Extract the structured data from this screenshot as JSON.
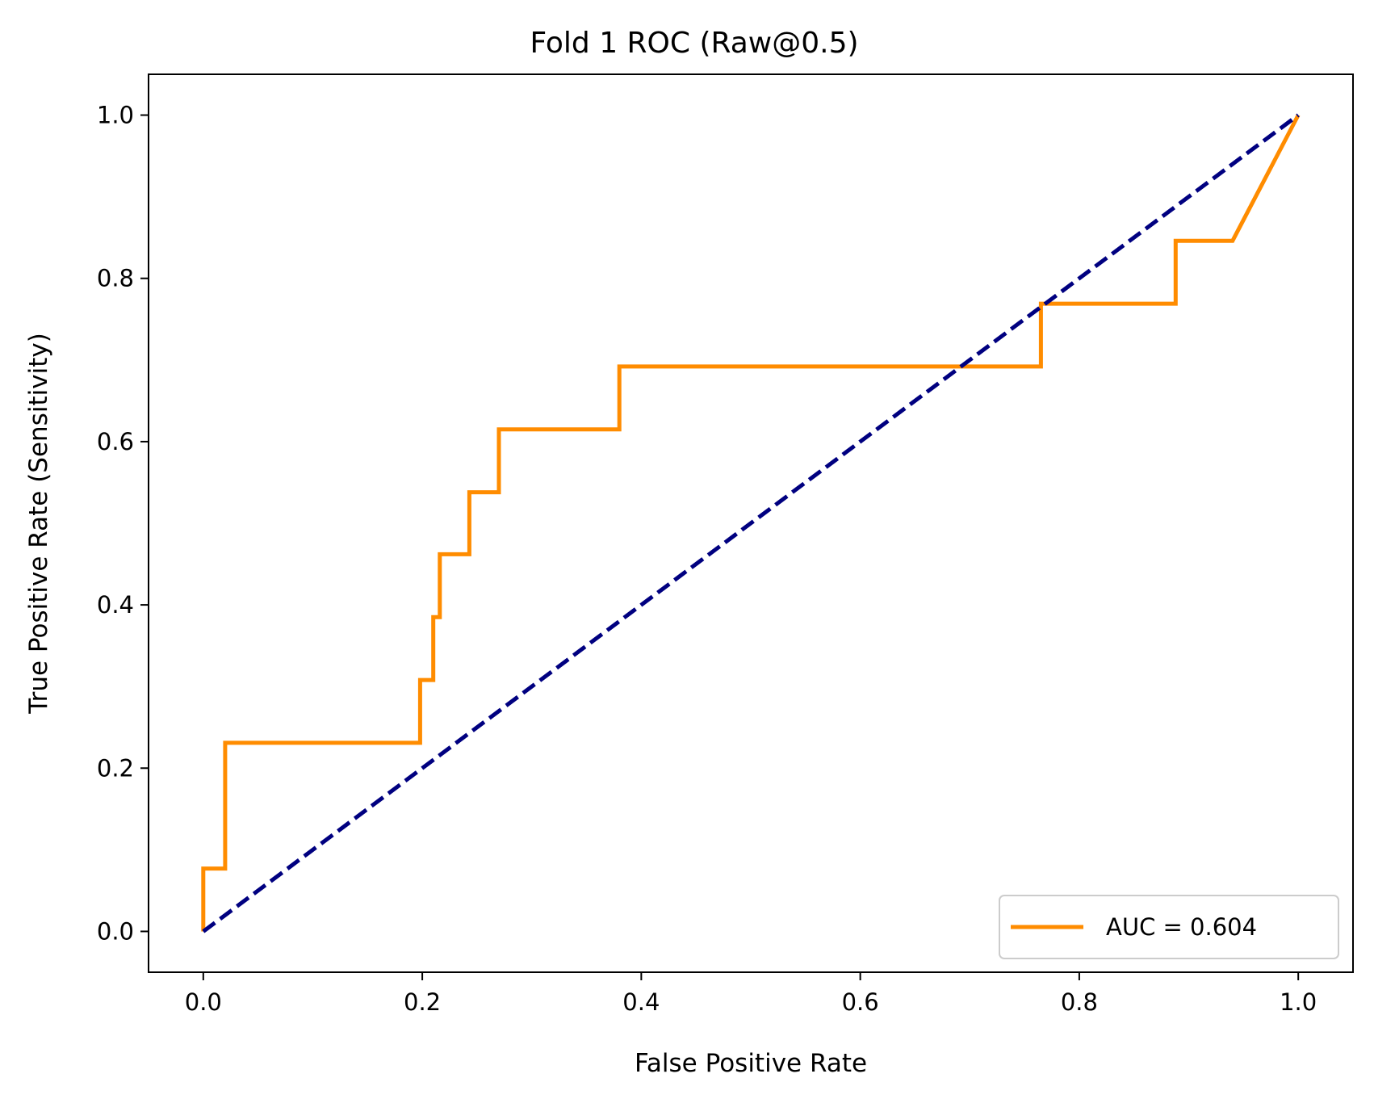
{
  "chart_data": {
    "type": "line",
    "title": "Fold 1 ROC (Raw@0.5)",
    "xlabel": "False Positive Rate",
    "ylabel": "True Positive Rate (Sensitivity)",
    "xlim": [
      -0.05,
      1.05
    ],
    "ylim": [
      -0.05,
      1.05
    ],
    "x_ticks": [
      "0.0",
      "0.2",
      "0.4",
      "0.6",
      "0.8",
      "1.0"
    ],
    "y_ticks": [
      "0.0",
      "0.2",
      "0.4",
      "0.6",
      "0.8",
      "1.0"
    ],
    "grid": false,
    "legend_position": "lower-right",
    "series": [
      {
        "name": "AUC = 0.604",
        "color": "#ff8c00",
        "style": "solid",
        "x": [
          0.0,
          0.0,
          0.02,
          0.02,
          0.198,
          0.198,
          0.21,
          0.21,
          0.216,
          0.216,
          0.243,
          0.243,
          0.27,
          0.27,
          0.38,
          0.38,
          0.765,
          0.765,
          0.888,
          0.888,
          0.94,
          1.0
        ],
        "y": [
          0.0,
          0.077,
          0.077,
          0.231,
          0.231,
          0.308,
          0.308,
          0.385,
          0.385,
          0.462,
          0.462,
          0.538,
          0.538,
          0.615,
          0.615,
          0.692,
          0.692,
          0.769,
          0.769,
          0.846,
          0.846,
          1.0
        ]
      },
      {
        "color": "#000080",
        "style": "dashed",
        "x": [
          0.0,
          1.0
        ],
        "y": [
          0.0,
          1.0
        ]
      }
    ]
  }
}
